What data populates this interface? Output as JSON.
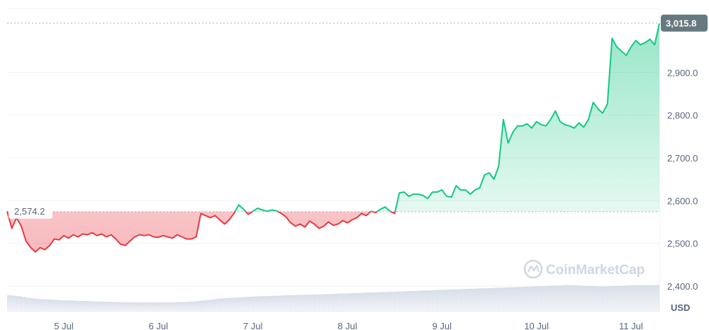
{
  "chart_data": {
    "type": "line",
    "y_unit": "USD",
    "ylim": [
      2340,
      3050
    ],
    "y_ticks": [
      "2,400.0",
      "2,500.0",
      "2,600.0",
      "2,700.0",
      "2,800.0",
      "2,900.0"
    ],
    "y_tick_values": [
      2400,
      2500,
      2600,
      2700,
      2800,
      2900
    ],
    "x_ticks": [
      "5 Jul",
      "6 Jul",
      "7 Jul",
      "8 Jul",
      "9 Jul",
      "10 Jul",
      "11 Jul"
    ],
    "x_tick_values": [
      0.5,
      1.5,
      2.5,
      3.5,
      4.5,
      5.5,
      6.5
    ],
    "xlim": [
      -0.1,
      6.8
    ],
    "reference_price": 2574.2,
    "reference_label": "2,574.2",
    "current_price": 3015.8,
    "current_label": "3,015.8",
    "colors": {
      "up": "#16c784",
      "down": "#ea3943",
      "current_tag": "#65797f"
    },
    "grid": true,
    "watermark": "CoinMarketCap",
    "series": [
      {
        "x": [
          -0.1,
          -0.05,
          0.0,
          0.05,
          0.1,
          0.15,
          0.2,
          0.25,
          0.3,
          0.35,
          0.4,
          0.45,
          0.5,
          0.55,
          0.6,
          0.65,
          0.7,
          0.75,
          0.8,
          0.85,
          0.9,
          0.95,
          1.0,
          1.05,
          1.1,
          1.15,
          1.2,
          1.25,
          1.3,
          1.35,
          1.4,
          1.45,
          1.5,
          1.55,
          1.6,
          1.65,
          1.7,
          1.75,
          1.8,
          1.85,
          1.9,
          1.95,
          2.0,
          2.05,
          2.1,
          2.15,
          2.2,
          2.25,
          2.3,
          2.35,
          2.4,
          2.45,
          2.5,
          2.55,
          2.6,
          2.65,
          2.7,
          2.75,
          2.8,
          2.85,
          2.9,
          2.95,
          3.0,
          3.05,
          3.1,
          3.15,
          3.2,
          3.25,
          3.3,
          3.35,
          3.4,
          3.45,
          3.5,
          3.55,
          3.6,
          3.65,
          3.7,
          3.75,
          3.8,
          3.85,
          3.9,
          3.95,
          4.0,
          4.05,
          4.1,
          4.15,
          4.2,
          4.25,
          4.3,
          4.35,
          4.4,
          4.45,
          4.5,
          4.55,
          4.6,
          4.65,
          4.7,
          4.75,
          4.8,
          4.85,
          4.9,
          4.95,
          5.0,
          5.05,
          5.1,
          5.15,
          5.2,
          5.25,
          5.3,
          5.35,
          5.4,
          5.45,
          5.5,
          5.55,
          5.6,
          5.65,
          5.7,
          5.75,
          5.8,
          5.85,
          5.9,
          5.95,
          6.0,
          6.05,
          6.1,
          6.15,
          6.2,
          6.25,
          6.3,
          6.35,
          6.4,
          6.45,
          6.5,
          6.55,
          6.6,
          6.65,
          6.7,
          6.75,
          6.8
        ],
        "y": [
          2575,
          2535,
          2560,
          2540,
          2505,
          2490,
          2480,
          2490,
          2485,
          2495,
          2510,
          2508,
          2518,
          2512,
          2520,
          2515,
          2522,
          2520,
          2525,
          2518,
          2522,
          2515,
          2520,
          2510,
          2498,
          2495,
          2505,
          2515,
          2520,
          2518,
          2520,
          2515,
          2514,
          2518,
          2515,
          2512,
          2520,
          2515,
          2510,
          2510,
          2515,
          2570,
          2565,
          2560,
          2565,
          2555,
          2545,
          2555,
          2570,
          2590,
          2580,
          2568,
          2575,
          2582,
          2578,
          2575,
          2578,
          2576,
          2570,
          2562,
          2548,
          2540,
          2545,
          2538,
          2552,
          2545,
          2535,
          2540,
          2550,
          2542,
          2545,
          2553,
          2548,
          2555,
          2560,
          2570,
          2565,
          2575,
          2572,
          2580,
          2585,
          2575,
          2570,
          2618,
          2620,
          2610,
          2615,
          2615,
          2612,
          2605,
          2620,
          2620,
          2625,
          2610,
          2608,
          2635,
          2625,
          2625,
          2615,
          2625,
          2630,
          2660,
          2665,
          2650,
          2680,
          2790,
          2735,
          2760,
          2775,
          2775,
          2780,
          2770,
          2785,
          2778,
          2775,
          2790,
          2810,
          2785,
          2778,
          2775,
          2770,
          2782,
          2772,
          2790,
          2830,
          2815,
          2805,
          2826,
          2980,
          2960,
          2950,
          2940,
          2960,
          2975,
          2965,
          2970,
          2978,
          2965,
          3015
        ]
      }
    ],
    "volume": [
      0.62,
      0.6,
      0.58,
      0.55,
      0.52,
      0.5,
      0.48,
      0.47,
      0.46,
      0.45,
      0.44,
      0.43,
      0.42,
      0.42,
      0.41,
      0.4,
      0.4,
      0.39,
      0.38,
      0.38,
      0.37,
      0.37,
      0.36,
      0.36,
      0.35,
      0.35,
      0.35,
      0.35,
      0.35,
      0.35,
      0.35,
      0.35,
      0.35,
      0.35,
      0.35,
      0.35,
      0.36,
      0.36,
      0.37,
      0.38,
      0.4,
      0.42,
      0.44,
      0.46,
      0.48,
      0.5,
      0.51,
      0.52,
      0.53,
      0.54,
      0.55,
      0.56,
      0.57,
      0.58,
      0.58,
      0.59,
      0.6,
      0.6,
      0.61,
      0.62,
      0.62,
      0.63,
      0.63,
      0.64,
      0.64,
      0.65,
      0.65,
      0.66,
      0.66,
      0.67,
      0.68,
      0.68,
      0.69,
      0.7,
      0.7,
      0.71,
      0.72,
      0.72,
      0.73,
      0.74,
      0.74,
      0.75,
      0.76,
      0.76,
      0.77,
      0.78,
      0.78,
      0.79,
      0.8,
      0.8,
      0.81,
      0.82,
      0.82,
      0.83,
      0.84,
      0.84,
      0.85,
      0.86,
      0.86,
      0.87,
      0.88,
      0.88,
      0.89,
      0.9,
      0.9,
      0.91,
      0.92,
      0.92,
      0.93,
      0.94,
      0.94,
      0.95,
      0.96,
      0.96,
      0.97,
      0.98,
      0.98,
      0.99,
      1.0,
      1.0,
      0.99,
      0.98,
      0.97,
      0.97,
      0.96,
      0.95,
      0.95,
      0.96,
      0.97,
      0.97,
      0.98,
      0.99,
      1.0,
      1.0,
      1.0,
      1.0,
      1.0,
      1.0
    ]
  }
}
